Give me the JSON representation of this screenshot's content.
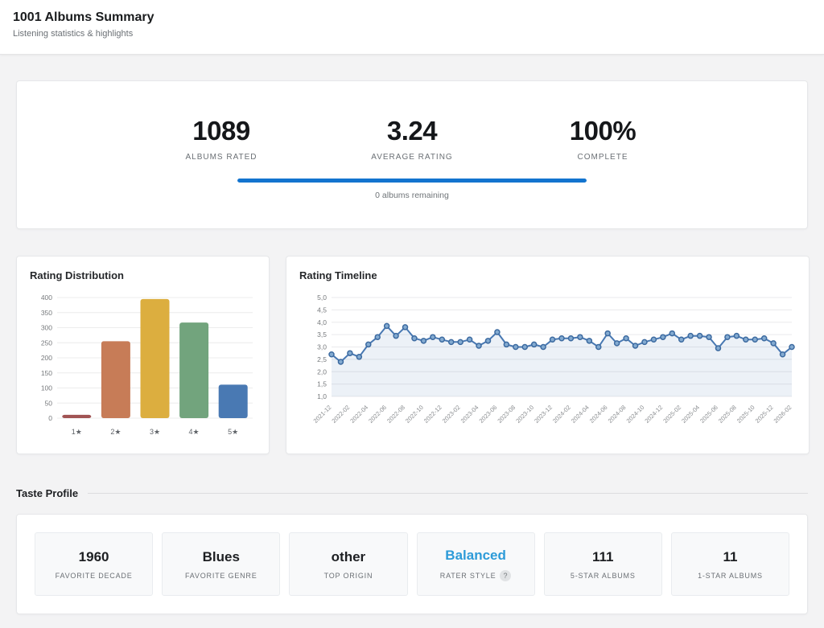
{
  "header": {
    "title": "1001 Albums Summary",
    "subtitle": "Listening statistics & highlights"
  },
  "summary": {
    "stats": [
      {
        "value": "1089",
        "label": "ALBUMS RATED"
      },
      {
        "value": "3.24",
        "label": "AVERAGE RATING"
      },
      {
        "value": "100%",
        "label": "COMPLETE"
      }
    ],
    "progress_percent": 100,
    "progress_color": "#1374cf",
    "progress_caption": "0 albums remaining"
  },
  "chart_data": [
    {
      "type": "bar",
      "title": "Rating Distribution",
      "categories": [
        "1★",
        "2★",
        "3★",
        "4★",
        "5★"
      ],
      "values": [
        11,
        255,
        395,
        317,
        111
      ],
      "bar_colors": [
        "#a15454",
        "#c77c57",
        "#dcae3f",
        "#72a47d",
        "#4979b3"
      ],
      "xlabel": "",
      "ylabel": "",
      "ylim": [
        0,
        400
      ],
      "ytick_step": 50,
      "grid": true,
      "legend": false
    },
    {
      "type": "line",
      "title": "Rating Timeline",
      "x": [
        "2021-12",
        "2022-01",
        "2022-02",
        "2022-03",
        "2022-04",
        "2022-05",
        "2022-06",
        "2022-07",
        "2022-08",
        "2022-09",
        "2022-10",
        "2022-11",
        "2022-12",
        "2023-01",
        "2023-02",
        "2023-03",
        "2023-04",
        "2023-05",
        "2023-06",
        "2023-07",
        "2023-08",
        "2023-09",
        "2023-10",
        "2023-11",
        "2023-12",
        "2024-01",
        "2024-02",
        "2024-03",
        "2024-04",
        "2024-05",
        "2024-06",
        "2024-07",
        "2024-08",
        "2024-09",
        "2024-10",
        "2024-11",
        "2024-12",
        "2025-01",
        "2025-02",
        "2025-03",
        "2025-04",
        "2025-05",
        "2025-06",
        "2025-07",
        "2025-08",
        "2025-09",
        "2025-10",
        "2025-11",
        "2025-12",
        "2026-01",
        "2026-02"
      ],
      "values": [
        2.7,
        2.4,
        2.75,
        2.6,
        3.1,
        3.4,
        3.85,
        3.45,
        3.8,
        3.35,
        3.25,
        3.4,
        3.3,
        3.2,
        3.2,
        3.3,
        3.05,
        3.25,
        3.6,
        3.1,
        3.0,
        3.0,
        3.1,
        3.0,
        3.3,
        3.35,
        3.35,
        3.4,
        3.25,
        3.0,
        3.55,
        3.15,
        3.35,
        3.05,
        3.2,
        3.3,
        3.4,
        3.55,
        3.3,
        3.45,
        3.45,
        3.4,
        2.95,
        3.4,
        3.45,
        3.3,
        3.3,
        3.35,
        3.15,
        2.7,
        3.0
      ],
      "ylim": [
        1.0,
        5.0
      ],
      "ytick_step": 0.5,
      "ytick_labels": [
        "1,0",
        "1,5",
        "2,0",
        "2,5",
        "3,0",
        "3,5",
        "4,0",
        "4,5",
        "5,0"
      ],
      "x_label_every": 2,
      "line_color": "#4878b2",
      "marker_fill": "#84abd1",
      "marker_stroke": "#3c6aa0",
      "area_fill": "rgba(72,120,178,0.10)",
      "grid": true,
      "legend": false
    }
  ],
  "taste_profile": {
    "title": "Taste Profile",
    "cards": [
      {
        "value": "1960",
        "label": "FAVORITE DECADE"
      },
      {
        "value": "Blues",
        "label": "FAVORITE GENRE"
      },
      {
        "value": "other",
        "label": "TOP ORIGIN"
      },
      {
        "value": "Balanced",
        "label": "RATER STYLE",
        "value_color": "#2d9bd8",
        "help_icon": "?"
      },
      {
        "value": "111",
        "label": "5-STAR ALBUMS"
      },
      {
        "value": "11",
        "label": "1-STAR ALBUMS"
      }
    ]
  }
}
